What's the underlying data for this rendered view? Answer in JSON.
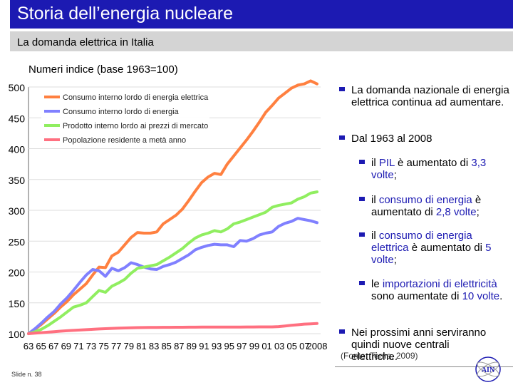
{
  "header": {
    "title": "Storia dell’energia nucleare",
    "subtitle": "La domanda elettrica in Italia"
  },
  "chart_data": {
    "type": "line",
    "title": "Numeri indice (base 1963=100)",
    "ylim": [
      100,
      500
    ],
    "yticks": [
      "100",
      "150",
      "200",
      "250",
      "300",
      "350",
      "400",
      "450",
      "500"
    ],
    "xticks": [
      "63",
      "65",
      "67",
      "69",
      "71",
      "73",
      "75",
      "77",
      "79",
      "81",
      "83",
      "85",
      "87",
      "89",
      "91",
      "93",
      "95",
      "97",
      "99",
      "01",
      "03",
      "05",
      "07",
      "2008"
    ],
    "x": [
      1963,
      1964,
      1965,
      1966,
      1967,
      1968,
      1969,
      1970,
      1971,
      1972,
      1973,
      1974,
      1975,
      1976,
      1977,
      1978,
      1979,
      1980,
      1981,
      1982,
      1983,
      1984,
      1985,
      1986,
      1987,
      1988,
      1989,
      1990,
      1991,
      1992,
      1993,
      1994,
      1995,
      1996,
      1997,
      1998,
      1999,
      2000,
      2001,
      2002,
      2003,
      2004,
      2005,
      2006,
      2007,
      2008
    ],
    "series": [
      {
        "name": "Consumo interno lordo di energia elettrica",
        "color": "#ff8040",
        "values": [
          100,
          107,
          115,
          124,
          133,
          143,
          152,
          163,
          172,
          181,
          195,
          208,
          207,
          226,
          232,
          244,
          256,
          264,
          263,
          263,
          265,
          278,
          285,
          292,
          302,
          316,
          331,
          345,
          354,
          360,
          358,
          375,
          388,
          401,
          414,
          428,
          443,
          459,
          470,
          482,
          490,
          498,
          503,
          505,
          510,
          505
        ]
      },
      {
        "name": "Consumo interno lordo di energia",
        "color": "#8080ff",
        "values": [
          100,
          108,
          117,
          127,
          136,
          148,
          158,
          170,
          183,
          195,
          204,
          202,
          193,
          206,
          202,
          207,
          215,
          212,
          208,
          205,
          204,
          209,
          212,
          216,
          222,
          228,
          236,
          240,
          243,
          245,
          244,
          244,
          241,
          251,
          250,
          254,
          260,
          263,
          265,
          274,
          279,
          282,
          287,
          285,
          283,
          280
        ]
      },
      {
        "name": "Prodotto interno lordo ai prezzi di mercato",
        "color": "#90ee60",
        "values": [
          100,
          103,
          107,
          113,
          120,
          127,
          135,
          143,
          146,
          150,
          160,
          170,
          167,
          177,
          182,
          188,
          198,
          206,
          208,
          210,
          212,
          218,
          224,
          231,
          238,
          247,
          255,
          260,
          263,
          267,
          265,
          270,
          278,
          281,
          285,
          289,
          293,
          297,
          305,
          308,
          310,
          312,
          318,
          322,
          328,
          330
        ]
      },
      {
        "name": "Popolazione residente a metà anno",
        "color": "#ff7080",
        "values": [
          100,
          100.8,
          101.6,
          102.4,
          103.2,
          104,
          104.7,
          105.3,
          105.9,
          106.5,
          107.1,
          107.6,
          108.1,
          108.5,
          108.9,
          109.3,
          109.6,
          109.8,
          110,
          110.1,
          110.2,
          110.3,
          110.3,
          110.4,
          110.4,
          110.5,
          110.5,
          110.6,
          110.6,
          110.7,
          110.8,
          110.8,
          110.8,
          110.8,
          110.9,
          110.9,
          111,
          111,
          111,
          111.5,
          112.5,
          113.5,
          114.5,
          115.5,
          116,
          116.5
        ]
      }
    ]
  },
  "bullets": {
    "b1": "La domanda nazionale di energia elettrica continua ad aumentare.",
    "b2": "Dal 1963 al 2008",
    "s1_a": "il ",
    "s1_b": "PIL",
    "s1_c": " è aumentato di ",
    "s1_d": "3,3 volte",
    "s2_a": "il ",
    "s2_b": "consumo di energia",
    "s2_c": " è aumentato di ",
    "s2_d": "2,8 volte",
    "s3_a": "il ",
    "s3_b": "consumo di energia elettrica",
    "s3_c": " è aumentato di ",
    "s3_d": "5 volte",
    "s4_a": "le ",
    "s4_b": "importazioni di elettricità",
    "s4_c": " sono aumentate di ",
    "s4_d": "10 volte",
    "b3": "Nei prossimi anni serviranno quindi nuove centrali elettriche."
  },
  "source": "(Fonte: Terna, 2009)",
  "slide_number": "Slide n. 38",
  "logo_text": "AIN"
}
